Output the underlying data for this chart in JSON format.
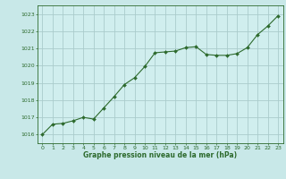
{
  "x": [
    0,
    1,
    2,
    3,
    4,
    5,
    6,
    7,
    8,
    9,
    10,
    11,
    12,
    13,
    14,
    15,
    16,
    17,
    18,
    19,
    20,
    21,
    22,
    23
  ],
  "y": [
    1016.0,
    1016.6,
    1016.65,
    1016.8,
    1017.0,
    1016.9,
    1017.55,
    1018.2,
    1018.9,
    1019.3,
    1019.95,
    1020.75,
    1020.8,
    1020.85,
    1021.05,
    1021.1,
    1020.65,
    1020.6,
    1020.6,
    1020.7,
    1021.05,
    1021.8,
    1022.3,
    1022.9
  ],
  "line_color": "#2d6a2d",
  "marker_color": "#2d6a2d",
  "bg_color": "#d0eeee",
  "grid_color": "#aacccc",
  "xlabel": "Graphe pression niveau de la mer (hPa)",
  "xlabel_color": "#2d6a2d",
  "tick_color": "#2d6a2d",
  "ylim": [
    1015.5,
    1023.5
  ],
  "yticks": [
    1016,
    1017,
    1018,
    1019,
    1020,
    1021,
    1022,
    1023
  ],
  "xlim": [
    -0.5,
    23.5
  ],
  "xticks": [
    0,
    1,
    2,
    3,
    4,
    5,
    6,
    7,
    8,
    9,
    10,
    11,
    12,
    13,
    14,
    15,
    16,
    17,
    18,
    19,
    20,
    21,
    22,
    23
  ],
  "outer_bg": "#c8e8e8",
  "figsize": [
    3.2,
    2.0
  ],
  "dpi": 100
}
